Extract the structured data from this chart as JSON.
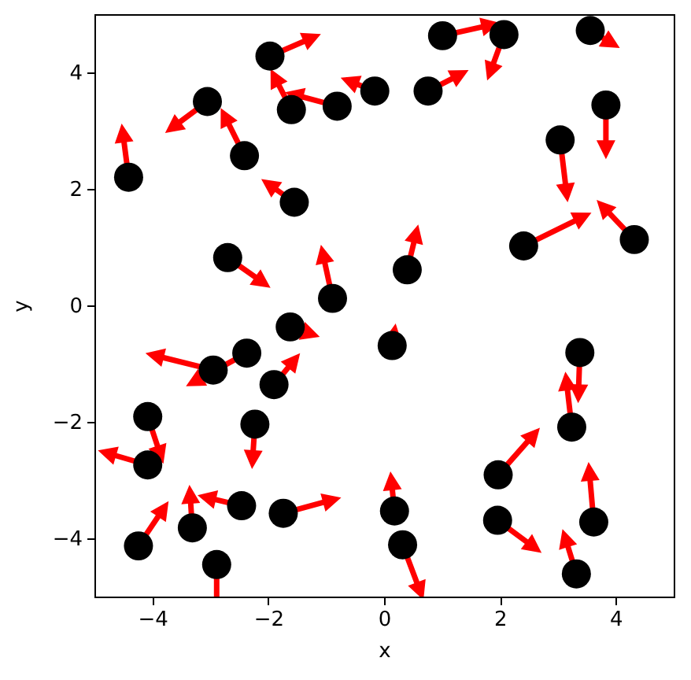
{
  "chart_data": {
    "type": "scatter",
    "xlabel": "x",
    "ylabel": "y",
    "xlim": [
      -5,
      5
    ],
    "ylim": [
      -5,
      5
    ],
    "xticks": [
      {
        "value": -4,
        "label": "−4"
      },
      {
        "value": -2,
        "label": "−2"
      },
      0,
      2,
      4
    ],
    "yticks": [
      {
        "value": -4,
        "label": "−4"
      },
      {
        "value": -2,
        "label": "−2"
      },
      0,
      2,
      4
    ],
    "series": [
      {
        "color": "#000000",
        "marker": "circle",
        "x": [
          -4.41,
          -3.05,
          -2.41,
          -1.97,
          -1.6,
          -0.81,
          -0.16,
          0.76,
          1.01,
          2.07,
          3.56,
          3.83,
          3.04,
          2.41,
          4.32,
          -1.55,
          -2.7,
          -0.89,
          0.4,
          -1.62,
          -2.95,
          -2.37,
          -1.9,
          -4.08,
          -4.08,
          -2.23,
          -2.46,
          -3.31,
          -4.24,
          -2.89,
          -1.74,
          0.18,
          0.32,
          0.14,
          1.97,
          1.96,
          3.24,
          3.38,
          3.62,
          3.32
        ],
        "values": [
          2.2,
          3.5,
          2.57,
          4.28,
          3.36,
          3.42,
          3.68,
          3.68,
          4.63,
          4.65,
          4.72,
          3.44,
          2.84,
          1.02,
          1.13,
          1.77,
          0.82,
          0.12,
          0.61,
          -0.37,
          -1.11,
          -0.82,
          -1.36,
          -1.91,
          -2.74,
          -2.04,
          -3.44,
          -3.82,
          -4.13,
          -4.45,
          -3.57,
          -3.53,
          -4.11,
          -0.69,
          -2.91,
          -3.69,
          -2.09,
          -0.81,
          -3.72,
          -4.61
        ]
      }
    ]
  }
}
